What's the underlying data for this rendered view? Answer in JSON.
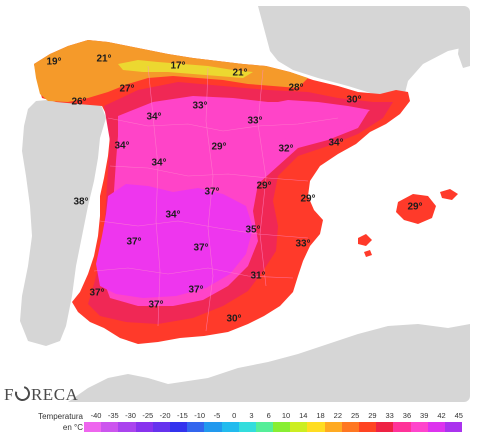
{
  "brand": {
    "name": "FORECA"
  },
  "legend": {
    "title_line1": "Temperatura",
    "title_line2": "en °C",
    "ticks": [
      "-40",
      "-35",
      "-30",
      "-25",
      "-20",
      "-15",
      "-10",
      "-5",
      "0",
      "3",
      "6",
      "10",
      "14",
      "18",
      "22",
      "25",
      "29",
      "33",
      "36",
      "39",
      "42",
      "45"
    ],
    "colors": [
      "#ee66ee",
      "#cc55ee",
      "#aa44ee",
      "#8833ee",
      "#6633ee",
      "#3333ee",
      "#3366ee",
      "#2299ee",
      "#22bbee",
      "#33dddd",
      "#55ee99",
      "#88ee33",
      "#ccee22",
      "#ffdd22",
      "#ffaa22",
      "#ff7722",
      "#ff4422",
      "#ee2244",
      "#ff3399",
      "#ff44cc",
      "#dd33ee",
      "#aa33ee"
    ]
  },
  "colors": {
    "land": "#d6d6d6",
    "sea": "#ffffff",
    "orange": "#f59a2a",
    "yellow": "#ecd830",
    "red": "#ff3a2a",
    "crimson": "#f02855",
    "pink": "#ff44c8",
    "magenta": "#ee36ee",
    "borders": "#ff88cc"
  },
  "map_labels": [
    {
      "id": "a",
      "text": "19°"
    },
    {
      "id": "b",
      "text": "21°"
    },
    {
      "id": "c",
      "text": "17°"
    },
    {
      "id": "d",
      "text": "21°"
    },
    {
      "id": "e",
      "text": "26°"
    },
    {
      "id": "f",
      "text": "27°"
    },
    {
      "id": "g",
      "text": "28°"
    },
    {
      "id": "h",
      "text": "30°"
    },
    {
      "id": "i",
      "text": "33°"
    },
    {
      "id": "j",
      "text": "34°"
    },
    {
      "id": "k",
      "text": "33°"
    },
    {
      "id": "l",
      "text": "34°"
    },
    {
      "id": "m",
      "text": "34°"
    },
    {
      "id": "n",
      "text": "29°"
    },
    {
      "id": "o",
      "text": "32°"
    },
    {
      "id": "p",
      "text": "34°"
    },
    {
      "id": "q",
      "text": "37°"
    },
    {
      "id": "r",
      "text": "29°"
    },
    {
      "id": "s",
      "text": "38°"
    },
    {
      "id": "t",
      "text": "29°"
    },
    {
      "id": "u",
      "text": "34°"
    },
    {
      "id": "v",
      "text": "35°"
    },
    {
      "id": "w",
      "text": "29°"
    },
    {
      "id": "x",
      "text": "37°"
    },
    {
      "id": "y",
      "text": "37°"
    },
    {
      "id": "z",
      "text": "33°"
    },
    {
      "id": "aa",
      "text": "31°"
    },
    {
      "id": "bb",
      "text": "37°"
    },
    {
      "id": "cc",
      "text": "37°"
    },
    {
      "id": "dd",
      "text": "37°"
    },
    {
      "id": "ee",
      "text": "30°"
    }
  ]
}
